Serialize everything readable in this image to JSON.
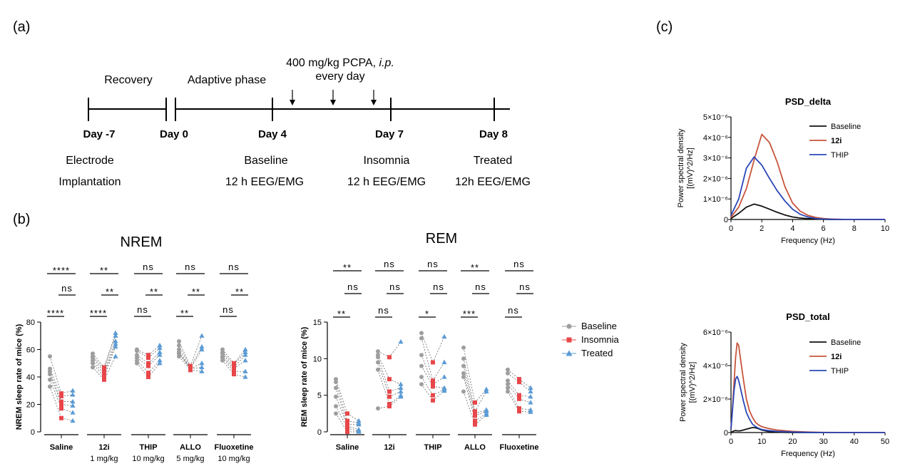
{
  "panels": {
    "a": "(a)",
    "b": "(b)",
    "c": "(c)"
  },
  "timeline": {
    "phases": [
      "Recovery",
      "Adaptive phase"
    ],
    "dose_line1": "400 mg/kg PCPA, ",
    "dose_italic": "i.p.",
    "dose_line2": "every day",
    "days": [
      "Day -7",
      "Day 0",
      "Day 4",
      "Day 7",
      "Day 8"
    ],
    "events": [
      {
        "line1": "Electrode",
        "line2": "Implantation"
      },
      {
        "line1": "Baseline",
        "line2": "12 h EEG/EMG"
      },
      {
        "line1": "Insomnia",
        "line2": "12 h EEG/EMG"
      },
      {
        "line1": "Treated",
        "line2": "12h EEG/EMG"
      }
    ]
  },
  "colors": {
    "baseline": "#9e9e9e",
    "insomnia": "#e8474a",
    "treated": "#5b9bd5",
    "psd_baseline": "#111111",
    "psd_12i": "#c8543a",
    "psd_thip": "#2a47b8"
  },
  "legend": [
    "Baseline",
    "Insomnia",
    "Treated"
  ],
  "chart_data": [
    {
      "type": "scatter",
      "title": "NREM",
      "ylabel": "NREM sleep rate of mice (%)",
      "ylim": [
        0,
        80
      ],
      "yticks": [
        0,
        20,
        40,
        60,
        80
      ],
      "categories": [
        "Saline",
        "12i",
        "THIP",
        "ALLO",
        "Fluoxetine"
      ],
      "category_sublabels": [
        "",
        "1 mg/kg",
        "10 mg/kg",
        "5 mg/kg",
        "10 mg/kg"
      ],
      "significance": [
        {
          "baseline_vs_treated": "****",
          "insomnia_vs_treated": "ns",
          "baseline_vs_insomnia": "****"
        },
        {
          "baseline_vs_treated": "**",
          "insomnia_vs_treated": "**",
          "baseline_vs_insomnia": "****"
        },
        {
          "baseline_vs_treated": "ns",
          "insomnia_vs_treated": "**",
          "baseline_vs_insomnia": "ns"
        },
        {
          "baseline_vs_treated": "ns",
          "insomnia_vs_treated": "**",
          "baseline_vs_insomnia": "**"
        },
        {
          "baseline_vs_treated": "ns",
          "insomnia_vs_treated": "**",
          "baseline_vs_insomnia": "ns"
        }
      ],
      "series": [
        {
          "name": "Baseline",
          "values": [
            [
              55,
              46,
              44,
              42,
              38,
              33
            ],
            [
              57,
              55,
              54,
              52,
              50,
              47
            ],
            [
              60,
              59,
              56,
              54,
              52,
              50
            ],
            [
              66,
              63,
              60,
              58,
              57,
              55
            ],
            [
              60,
              58,
              57,
              55,
              54,
              52
            ]
          ]
        },
        {
          "name": "Insomnia",
          "values": [
            [
              28,
              26,
              22,
              20,
              17,
              10
            ],
            [
              47,
              46,
              44,
              42,
              40,
              38
            ],
            [
              56,
              54,
              50,
              48,
              43,
              40
            ],
            [
              48,
              47,
              46,
              46,
              46,
              45
            ],
            [
              50,
              49,
              47,
              46,
              44,
              42
            ]
          ]
        },
        {
          "name": "Treated",
          "values": [
            [
              30,
              27,
              22,
              19,
              14,
              8
            ],
            [
              72,
              70,
              66,
              64,
              62,
              55
            ],
            [
              63,
              61,
              58,
              56,
              52,
              50
            ],
            [
              70,
              62,
              60,
              50,
              47,
              44
            ],
            [
              60,
              58,
              56,
              52,
              44,
              40
            ]
          ]
        }
      ]
    },
    {
      "type": "scatter",
      "title": "REM",
      "ylabel": "REM sleep rate of mice (%)",
      "ylim": [
        0,
        15
      ],
      "yticks": [
        0,
        5,
        10,
        15
      ],
      "categories": [
        "Saline",
        "12i",
        "THIP",
        "ALLO",
        "Fluoxetine"
      ],
      "category_sublabels": [
        "",
        "",
        "",
        "",
        ""
      ],
      "significance": [
        {
          "baseline_vs_treated": "**",
          "insomnia_vs_treated": "ns",
          "baseline_vs_insomnia": "**"
        },
        {
          "baseline_vs_treated": "ns",
          "insomnia_vs_treated": "ns",
          "baseline_vs_insomnia": "ns"
        },
        {
          "baseline_vs_treated": "ns",
          "insomnia_vs_treated": "ns",
          "baseline_vs_insomnia": "*"
        },
        {
          "baseline_vs_treated": "**",
          "insomnia_vs_treated": "ns",
          "baseline_vs_insomnia": "***"
        },
        {
          "baseline_vs_treated": "ns",
          "insomnia_vs_treated": "ns",
          "baseline_vs_insomnia": "ns"
        }
      ],
      "series": [
        {
          "name": "Baseline",
          "values": [
            [
              7.2,
              6.8,
              6.0,
              4.8,
              3.5,
              2.5
            ],
            [
              11.0,
              10.5,
              10.2,
              9.5,
              8.5,
              3.2
            ],
            [
              13.5,
              12.8,
              10.5,
              9.0,
              7.5,
              6.5
            ],
            [
              11.5,
              10.0,
              9.0,
              8.0,
              7.5,
              5.5
            ],
            [
              8.5,
              8.0,
              7.0,
              6.5,
              6.0,
              5.5
            ]
          ]
        },
        {
          "name": "Insomnia",
          "values": [
            [
              2.5,
              1.5,
              1.0,
              0.8,
              0.5,
              0.0
            ],
            [
              10.2,
              7.2,
              5.5,
              4.8,
              3.8,
              3.5
            ],
            [
              9.5,
              7.0,
              6.5,
              6.2,
              5.0,
              4.3
            ],
            [
              4.0,
              2.8,
              2.5,
              2.2,
              1.5,
              1.0
            ],
            [
              7.2,
              6.8,
              5.0,
              4.5,
              3.2,
              2.8
            ]
          ]
        },
        {
          "name": "Treated",
          "values": [
            [
              1.5,
              1.2,
              1.0,
              0.3,
              0.1,
              0.0
            ],
            [
              12.3,
              6.5,
              6.0,
              5.5,
              5.0,
              4.8
            ],
            [
              13.0,
              9.5,
              7.5,
              6.0,
              5.8,
              5.6
            ],
            [
              5.8,
              5.5,
              3.0,
              2.8,
              2.5,
              2.3
            ],
            [
              6.0,
              5.5,
              4.8,
              4.0,
              3.0,
              2.7
            ]
          ]
        }
      ]
    },
    {
      "type": "line",
      "title": "PSD_delta",
      "xlabel": "Frequency (Hz)",
      "ylabel_lines": [
        "Power spectral density",
        "[(mV)^2/Hz]"
      ],
      "xlim": [
        0,
        10
      ],
      "xticks": [
        0,
        2,
        4,
        6,
        8,
        10
      ],
      "ylim": [
        0,
        5
      ],
      "ytick_labels": [
        "0",
        "1×10⁻⁶",
        "2×10⁻⁶",
        "3×10⁻⁶",
        "4×10⁻⁶",
        "5×10⁻⁶"
      ],
      "y_scale_note": "values in units of 1e-6 (mV)^2/Hz",
      "x": [
        0,
        0.5,
        1,
        1.5,
        2,
        2.5,
        3,
        3.5,
        4,
        4.5,
        5,
        5.5,
        6,
        6.5,
        7,
        7.5,
        8,
        9,
        10
      ],
      "series": [
        {
          "name": "Baseline",
          "values": [
            0.05,
            0.3,
            0.6,
            0.75,
            0.65,
            0.5,
            0.35,
            0.22,
            0.12,
            0.07,
            0.04,
            0.02,
            0.01,
            0,
            0,
            0,
            0,
            0,
            0
          ]
        },
        {
          "name": "12i",
          "values": [
            0.1,
            0.6,
            1.5,
            2.9,
            4.15,
            3.75,
            2.8,
            1.6,
            0.8,
            0.4,
            0.2,
            0.1,
            0.05,
            0.02,
            0.01,
            0,
            0,
            0,
            0
          ]
        },
        {
          "name": "THIP",
          "values": [
            0.2,
            1.0,
            2.5,
            3.05,
            2.65,
            2.0,
            1.4,
            0.9,
            0.5,
            0.25,
            0.12,
            0.05,
            0.02,
            0.01,
            0,
            0,
            0,
            0,
            0
          ]
        }
      ]
    },
    {
      "type": "line",
      "title": "PSD_total",
      "xlabel": "Frequency (Hz)",
      "ylabel_lines": [
        "Power spectral density",
        "[(mV)^2/Hz]"
      ],
      "xlim": [
        0,
        50
      ],
      "xticks": [
        0,
        10,
        20,
        30,
        40,
        50
      ],
      "ylim": [
        0,
        6
      ],
      "ytick_labels": [
        "0",
        "2×10⁻⁶",
        "4×10⁻⁶",
        "6×10⁻⁶"
      ],
      "y_scale_note": "values in units of 1e-6 (mV)^2/Hz",
      "x": [
        0,
        0.5,
        1,
        1.5,
        2,
        2.5,
        3,
        4,
        5,
        6,
        7,
        8,
        9,
        10,
        12,
        15,
        20,
        25,
        30,
        40,
        50
      ],
      "series": [
        {
          "name": "Baseline",
          "values": [
            0,
            0.05,
            0.1,
            0.12,
            0.1,
            0.1,
            0.1,
            0.15,
            0.2,
            0.25,
            0.3,
            0.28,
            0.22,
            0.15,
            0.07,
            0.02,
            0,
            0,
            0,
            0,
            0
          ]
        },
        {
          "name": "12i",
          "values": [
            0.2,
            1.5,
            3.0,
            4.5,
            5.35,
            5.2,
            4.5,
            3.2,
            2.0,
            1.3,
            0.9,
            0.6,
            0.45,
            0.35,
            0.25,
            0.15,
            0.07,
            0.03,
            0.01,
            0,
            0
          ]
        },
        {
          "name": "THIP",
          "values": [
            0.2,
            1.4,
            2.5,
            3.2,
            3.35,
            3.1,
            2.7,
            1.9,
            1.2,
            0.8,
            0.5,
            0.35,
            0.25,
            0.18,
            0.12,
            0.07,
            0.03,
            0.01,
            0,
            0,
            0
          ]
        }
      ]
    }
  ]
}
